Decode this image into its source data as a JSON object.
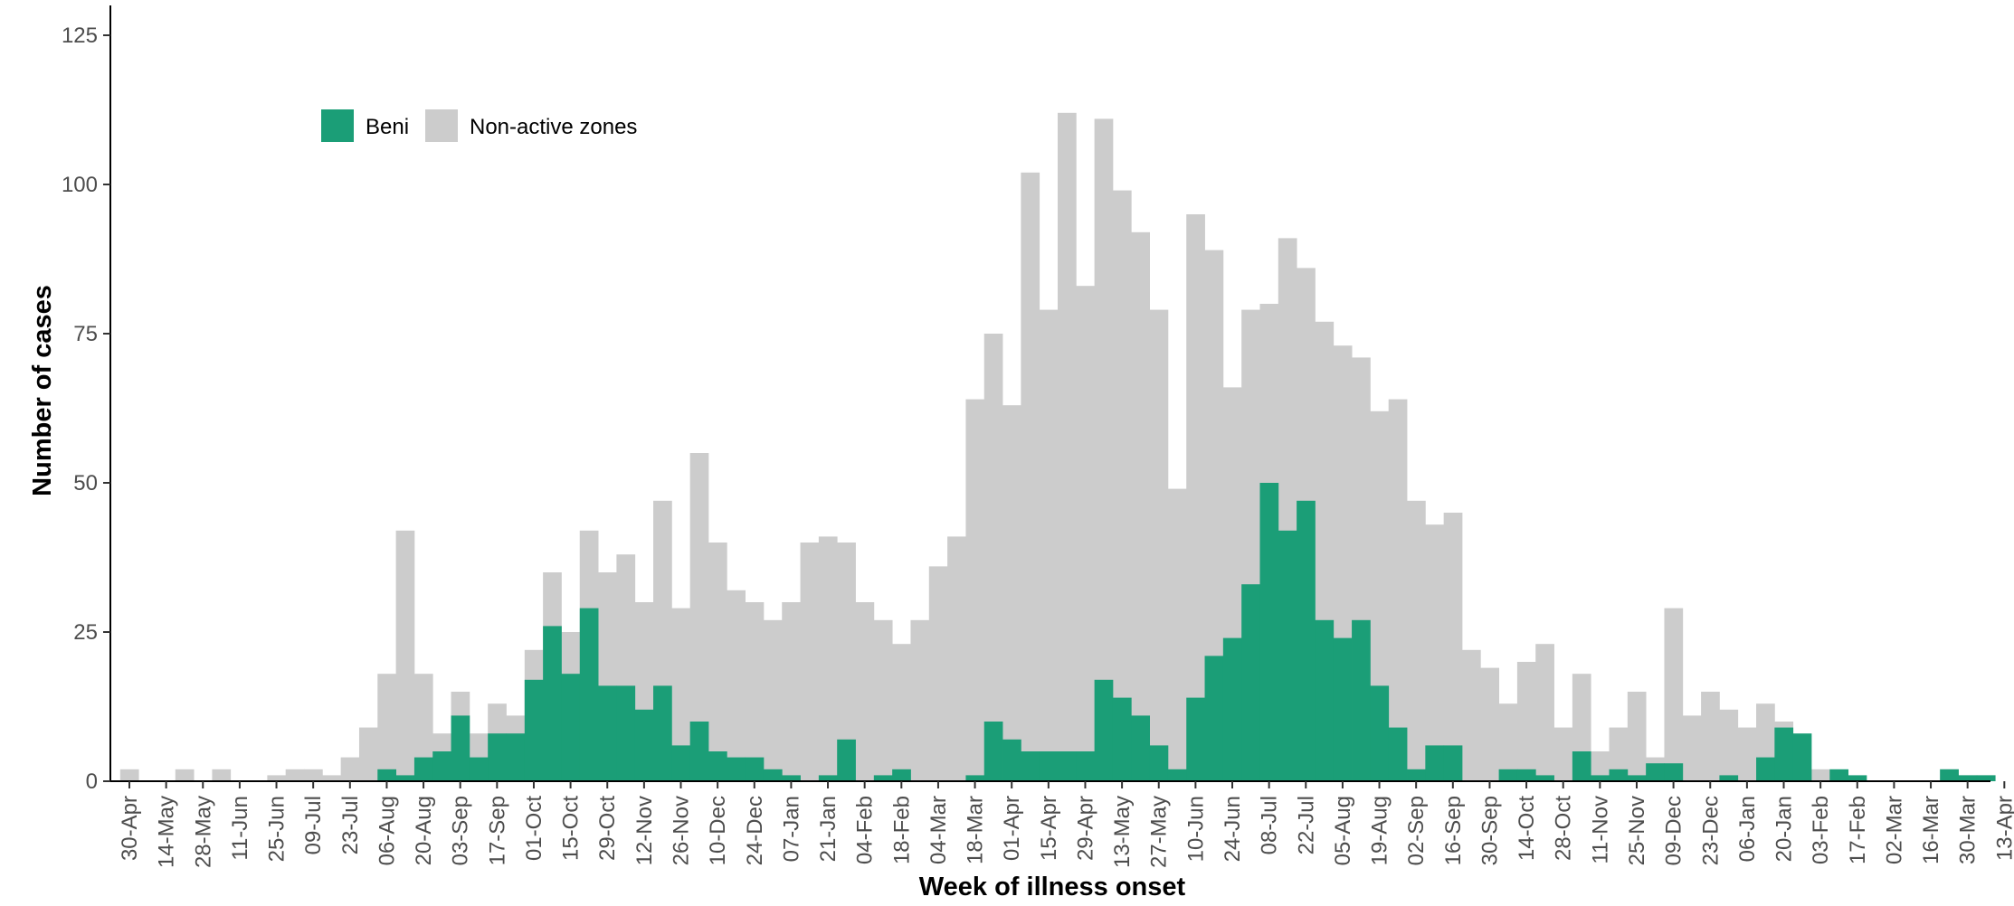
{
  "chart_data": {
    "type": "bar",
    "stacked": "overlay",
    "xlabel": "Week of illness onset",
    "ylabel": "Number of cases",
    "ylim": [
      0,
      125
    ],
    "yticks": [
      0,
      25,
      50,
      75,
      100,
      125
    ],
    "grid": false,
    "legend_position": "top-left",
    "x_tick_labels": [
      "30-Apr",
      "14-May",
      "28-May",
      "11-Jun",
      "25-Jun",
      "09-Jul",
      "23-Jul",
      "06-Aug",
      "20-Aug",
      "03-Sep",
      "17-Sep",
      "01-Oct",
      "15-Oct",
      "29-Oct",
      "12-Nov",
      "26-Nov",
      "10-Dec",
      "24-Dec",
      "07-Jan",
      "21-Jan",
      "04-Feb",
      "18-Feb",
      "04-Mar",
      "18-Mar",
      "01-Apr",
      "15-Apr",
      "29-Apr",
      "13-May",
      "27-May",
      "10-Jun",
      "24-Jun",
      "08-Jul",
      "22-Jul",
      "05-Aug",
      "19-Aug",
      "02-Sep",
      "16-Sep",
      "30-Sep",
      "14-Oct",
      "28-Oct",
      "11-Nov",
      "25-Nov",
      "09-Dec",
      "23-Dec",
      "06-Jan",
      "20-Jan",
      "03-Feb",
      "17-Feb",
      "02-Mar",
      "16-Mar",
      "30-Mar",
      "13-Apr"
    ],
    "series": [
      {
        "name": "Non-active zones",
        "color": "#cccccc",
        "values": [
          2,
          0,
          0,
          2,
          0,
          2,
          0,
          0,
          1,
          2,
          2,
          1,
          4,
          9,
          18,
          42,
          18,
          8,
          15,
          8,
          13,
          11,
          22,
          35,
          25,
          42,
          35,
          38,
          30,
          47,
          29,
          55,
          40,
          32,
          30,
          27,
          30,
          40,
          41,
          40,
          30,
          27,
          23,
          27,
          36,
          41,
          64,
          75,
          63,
          102,
          79,
          112,
          83,
          111,
          99,
          92,
          79,
          49,
          95,
          89,
          66,
          79,
          80,
          91,
          86,
          77,
          73,
          71,
          62,
          64,
          47,
          43,
          45,
          22,
          19,
          13,
          20,
          23,
          9,
          18,
          5,
          9,
          15,
          4,
          29,
          11,
          15,
          12,
          9,
          13,
          10,
          2,
          2,
          1,
          0,
          0,
          0,
          0,
          0,
          2,
          1,
          1
        ]
      },
      {
        "name": "Beni",
        "color": "#1b9e77",
        "values": [
          0,
          0,
          0,
          0,
          0,
          0,
          0,
          0,
          0,
          0,
          0,
          0,
          0,
          0,
          2,
          1,
          4,
          5,
          11,
          4,
          8,
          8,
          17,
          26,
          18,
          29,
          16,
          16,
          12,
          16,
          6,
          10,
          5,
          4,
          4,
          2,
          1,
          0,
          1,
          7,
          0,
          1,
          2,
          0,
          0,
          0,
          1,
          10,
          7,
          5,
          5,
          5,
          5,
          17,
          14,
          11,
          6,
          2,
          14,
          21,
          24,
          33,
          50,
          42,
          47,
          27,
          24,
          27,
          16,
          9,
          2,
          6,
          6,
          0,
          0,
          2,
          2,
          1,
          0,
          5,
          1,
          2,
          1,
          3,
          3,
          0,
          0,
          1,
          0,
          4,
          9,
          8,
          0,
          2,
          1,
          0,
          0,
          0,
          0,
          2,
          1,
          1
        ]
      }
    ]
  }
}
